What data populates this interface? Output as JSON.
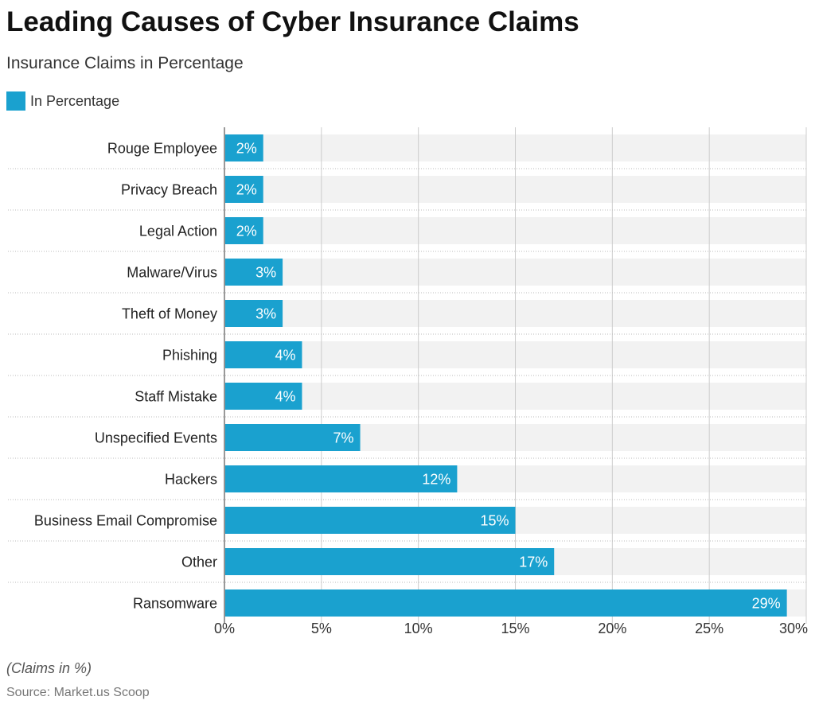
{
  "header": {
    "title": "Leading Causes of Cyber Insurance Claims",
    "subtitle": "Insurance Claims in Percentage"
  },
  "legend": {
    "label": "In Percentage",
    "color": "#1aa1cf"
  },
  "footer": {
    "note": "(Claims in %)",
    "source": "Source: Market.us Scoop"
  },
  "colors": {
    "bar": "#1aa1cf",
    "track": "#f2f2f2",
    "grid": "#cccccc",
    "label_inside": "#ffffff"
  },
  "chart_data": {
    "type": "bar",
    "orientation": "horizontal",
    "title": "Leading Causes of Cyber Insurance Claims",
    "subtitle": "Insurance Claims in Percentage",
    "xlabel": "",
    "ylabel": "",
    "xlim": [
      0,
      30
    ],
    "ticks": [
      0,
      5,
      10,
      15,
      20,
      25,
      30
    ],
    "tick_labels": [
      "0%",
      "5%",
      "10%",
      "15%",
      "20%",
      "25%",
      "30%"
    ],
    "grid": true,
    "legend": "top-left",
    "series": [
      {
        "name": "In Percentage",
        "values": [
          2,
          2,
          2,
          3,
          3,
          4,
          4,
          7,
          12,
          15,
          17,
          29
        ]
      }
    ],
    "categories": [
      "Rouge Employee",
      "Privacy Breach",
      "Legal Action",
      "Malware/Virus",
      "Theft of Money",
      "Phishing",
      "Staff Mistake",
      "Unspecified Events",
      "Hackers",
      "Business Email Compromise",
      "Other",
      "Ransomware"
    ],
    "data_labels": [
      "2%",
      "2%",
      "2%",
      "3%",
      "3%",
      "4%",
      "4%",
      "7%",
      "12%",
      "15%",
      "17%",
      "29%"
    ]
  }
}
